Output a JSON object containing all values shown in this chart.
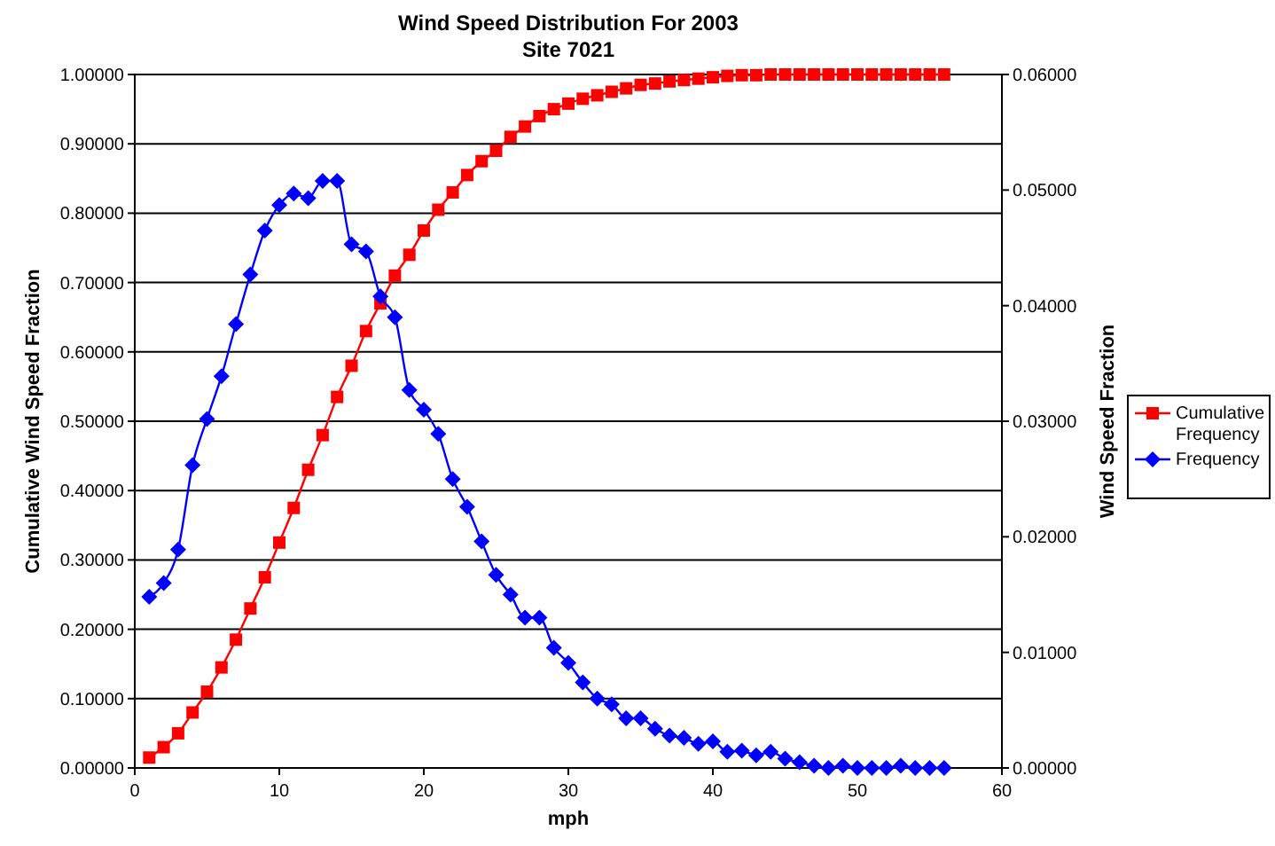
{
  "chart_data": {
    "type": "line",
    "title": "Wind Speed Distribution For 2003",
    "subtitle": "Site 7021",
    "xlabel": "mph",
    "ylabel": "Cumulative Wind Speed Fraction",
    "y2label": "Wind Speed Fraction",
    "x": [
      1,
      2,
      3,
      4,
      5,
      6,
      7,
      8,
      9,
      10,
      11,
      12,
      13,
      14,
      15,
      16,
      17,
      18,
      19,
      20,
      21,
      22,
      23,
      24,
      25,
      26,
      27,
      28,
      29,
      30,
      31,
      32,
      33,
      34,
      35,
      36,
      37,
      38,
      39,
      40,
      41,
      42,
      43,
      44,
      45,
      46,
      47,
      48,
      49,
      50,
      51,
      52,
      53,
      54,
      55,
      56
    ],
    "xlim": [
      0,
      60
    ],
    "xticks": [
      0,
      10,
      20,
      30,
      40,
      50,
      60
    ],
    "ylim": [
      0,
      1
    ],
    "yticks": [
      {
        "value": 0,
        "label": "0.00000"
      },
      {
        "value": 0.1,
        "label": "0.10000"
      },
      {
        "value": 0.2,
        "label": "0.20000"
      },
      {
        "value": 0.3,
        "label": "0.30000"
      },
      {
        "value": 0.4,
        "label": "0.40000"
      },
      {
        "value": 0.5,
        "label": "0.50000"
      },
      {
        "value": 0.6,
        "label": "0.60000"
      },
      {
        "value": 0.7,
        "label": "0.70000"
      },
      {
        "value": 0.8,
        "label": "0.80000"
      },
      {
        "value": 0.9,
        "label": "0.90000"
      },
      {
        "value": 1,
        "label": "1.00000"
      }
    ],
    "y2lim": [
      0,
      0.06
    ],
    "y2ticks": [
      {
        "value": 0,
        "label": "0.00000"
      },
      {
        "value": 0.01,
        "label": "0.01000"
      },
      {
        "value": 0.02,
        "label": "0.02000"
      },
      {
        "value": 0.03,
        "label": "0.03000"
      },
      {
        "value": 0.04,
        "label": "0.04000"
      },
      {
        "value": 0.05,
        "label": "0.05000"
      },
      {
        "value": 0.06,
        "label": "0.06000"
      }
    ],
    "grid": "y",
    "legend": "right",
    "series": [
      {
        "name": "Cumulative Frequency",
        "color": "#ff0000",
        "marker": "square",
        "values": [
          0.015,
          0.03,
          0.05,
          0.08,
          0.11,
          0.145,
          0.185,
          0.23,
          0.275,
          0.325,
          0.375,
          0.43,
          0.48,
          0.535,
          0.58,
          0.63,
          0.67,
          0.71,
          0.74,
          0.775,
          0.805,
          0.83,
          0.855,
          0.875,
          0.89,
          0.91,
          0.925,
          0.94,
          0.95,
          0.958,
          0.965,
          0.97,
          0.975,
          0.98,
          0.985,
          0.987,
          0.99,
          0.992,
          0.994,
          0.996,
          0.998,
          0.999,
          0.999,
          1,
          1,
          1,
          1,
          1,
          1,
          1,
          1,
          1,
          1,
          1,
          1,
          1
        ]
      },
      {
        "name": "Frequency",
        "color": "#0000ff",
        "marker": "diamond",
        "axis": "y2",
        "values": [
          0.0148,
          0.016,
          0.0189,
          0.0262,
          0.0302,
          0.0339,
          0.0384,
          0.0427,
          0.0465,
          0.0487,
          0.0497,
          0.0493,
          0.0508,
          0.0508,
          0.0453,
          0.0447,
          0.0408,
          0.039,
          0.0327,
          0.031,
          0.0289,
          0.025,
          0.0226,
          0.0196,
          0.0167,
          0.015,
          0.013,
          0.013,
          0.0104,
          0.0091,
          0.0074,
          0.006,
          0.0055,
          0.0043,
          0.0043,
          0.0034,
          0.0028,
          0.0026,
          0.0021,
          0.0023,
          0.0014,
          0.0015,
          0.0011,
          0.0014,
          0.0008,
          0.0005,
          0.0002,
          0,
          0.0002,
          0,
          0,
          0,
          0.0002,
          0,
          0,
          0
        ]
      }
    ]
  }
}
